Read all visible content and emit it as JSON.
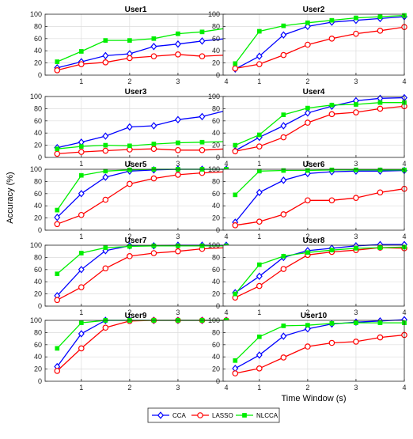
{
  "figure": {
    "ylabel": "Accuracy (%)",
    "xlabel": "Time Window (s)"
  },
  "legend": {
    "entries": [
      {
        "name": "CCA",
        "color": "#0000ff",
        "marker": "diamond"
      },
      {
        "name": "LASSO",
        "color": "#ff0000",
        "marker": "circle"
      },
      {
        "name": "NLCCA",
        "color": "#00ee00",
        "marker": "square-filled"
      }
    ]
  },
  "chart_data": [
    {
      "type": "line",
      "title": "User1",
      "x": [
        0.5,
        1,
        1.5,
        2,
        2.5,
        3,
        3.5,
        4
      ],
      "xlim": [
        0.25,
        4
      ],
      "ylim": [
        0,
        100
      ],
      "xticks": [
        1,
        2,
        3,
        4
      ],
      "yticks": [
        0,
        20,
        40,
        60,
        80,
        100
      ],
      "grid": true,
      "series": [
        {
          "name": "CCA",
          "values": [
            12,
            22,
            32,
            35,
            47,
            51,
            56,
            60
          ]
        },
        {
          "name": "LASSO",
          "values": [
            8,
            18,
            21,
            28,
            31,
            34,
            31,
            33
          ]
        },
        {
          "name": "NLCCA",
          "values": [
            22,
            39,
            57,
            57,
            60,
            68,
            71,
            77
          ]
        }
      ]
    },
    {
      "type": "line",
      "title": "User2",
      "x": [
        0.5,
        1,
        1.5,
        2,
        2.5,
        3,
        3.5,
        4
      ],
      "xlim": [
        0.25,
        4
      ],
      "ylim": [
        0,
        100
      ],
      "xticks": [
        1,
        2,
        3,
        4
      ],
      "yticks": [
        0,
        20,
        40,
        60,
        80,
        100
      ],
      "grid": true,
      "series": [
        {
          "name": "CCA",
          "values": [
            10,
            31,
            66,
            80,
            87,
            90,
            93,
            96
          ]
        },
        {
          "name": "LASSO",
          "values": [
            11,
            18,
            33,
            50,
            60,
            68,
            73,
            79
          ]
        },
        {
          "name": "NLCCA",
          "values": [
            19,
            72,
            81,
            86,
            90,
            94,
            96,
            98
          ]
        }
      ]
    },
    {
      "type": "line",
      "title": "User3",
      "x": [
        0.5,
        1,
        1.5,
        2,
        2.5,
        3,
        3.5,
        4
      ],
      "xlim": [
        0.25,
        4
      ],
      "ylim": [
        0,
        100
      ],
      "xticks": [
        1,
        2,
        3,
        4
      ],
      "yticks": [
        0,
        20,
        40,
        60,
        80,
        100
      ],
      "grid": true,
      "series": [
        {
          "name": "CCA",
          "values": [
            16,
            25,
            35,
            50,
            52,
            62,
            67,
            77
          ]
        },
        {
          "name": "LASSO",
          "values": [
            6,
            9,
            11,
            13,
            14,
            12,
            12,
            14
          ]
        },
        {
          "name": "NLCCA",
          "values": [
            14,
            18,
            20,
            19,
            22,
            24,
            25,
            26
          ]
        }
      ]
    },
    {
      "type": "line",
      "title": "User4",
      "x": [
        0.5,
        1,
        1.5,
        2,
        2.5,
        3,
        3.5,
        4
      ],
      "xlim": [
        0.25,
        4
      ],
      "ylim": [
        0,
        100
      ],
      "xticks": [
        1,
        2,
        3,
        4
      ],
      "yticks": [
        0,
        20,
        40,
        60,
        80,
        100
      ],
      "grid": true,
      "series": [
        {
          "name": "CCA",
          "values": [
            11,
            33,
            52,
            73,
            84,
            93,
            97,
            98
          ]
        },
        {
          "name": "LASSO",
          "values": [
            10,
            18,
            33,
            57,
            71,
            74,
            80,
            84
          ]
        },
        {
          "name": "NLCCA",
          "values": [
            20,
            37,
            70,
            81,
            86,
            87,
            90,
            90
          ]
        }
      ]
    },
    {
      "type": "line",
      "title": "User5",
      "x": [
        0.5,
        1,
        1.5,
        2,
        2.5,
        3,
        3.5,
        4
      ],
      "xlim": [
        0.25,
        4
      ],
      "ylim": [
        0,
        100
      ],
      "xticks": [
        1,
        2,
        3,
        4
      ],
      "yticks": [
        0,
        20,
        40,
        60,
        80,
        100
      ],
      "grid": true,
      "series": [
        {
          "name": "CCA",
          "values": [
            21,
            60,
            87,
            97,
            99,
            100,
            100,
            100
          ]
        },
        {
          "name": "LASSO",
          "values": [
            10,
            25,
            50,
            76,
            85,
            91,
            94,
            96
          ]
        },
        {
          "name": "NLCCA",
          "values": [
            33,
            90,
            97,
            99,
            100,
            100,
            100,
            100
          ]
        }
      ]
    },
    {
      "type": "line",
      "title": "User6",
      "x": [
        0.5,
        1,
        1.5,
        2,
        2.5,
        3,
        3.5,
        4
      ],
      "xlim": [
        0.25,
        4
      ],
      "ylim": [
        0,
        100
      ],
      "xticks": [
        1,
        2,
        3,
        4
      ],
      "yticks": [
        0,
        20,
        40,
        60,
        80,
        100
      ],
      "grid": true,
      "series": [
        {
          "name": "CCA",
          "values": [
            13,
            62,
            82,
            93,
            96,
            97,
            97,
            98
          ]
        },
        {
          "name": "LASSO",
          "values": [
            8,
            14,
            26,
            49,
            49,
            53,
            62,
            68
          ]
        },
        {
          "name": "NLCCA",
          "values": [
            58,
            97,
            98,
            98,
            99,
            99,
            99,
            99
          ]
        }
      ]
    },
    {
      "type": "line",
      "title": "User7",
      "x": [
        0.5,
        1,
        1.5,
        2,
        2.5,
        3,
        3.5,
        4
      ],
      "xlim": [
        0.25,
        4
      ],
      "ylim": [
        0,
        100
      ],
      "xticks": [
        1,
        2,
        3,
        4
      ],
      "yticks": [
        0,
        20,
        40,
        60,
        80,
        100
      ],
      "grid": true,
      "series": [
        {
          "name": "CCA",
          "values": [
            17,
            60,
            91,
            99,
            99,
            100,
            100,
            100
          ]
        },
        {
          "name": "LASSO",
          "values": [
            10,
            31,
            62,
            82,
            87,
            90,
            94,
            96
          ]
        },
        {
          "name": "NLCCA",
          "values": [
            53,
            87,
            96,
            98,
            99,
            99,
            99,
            99
          ]
        }
      ]
    },
    {
      "type": "line",
      "title": "User8",
      "x": [
        0.5,
        1,
        1.5,
        2,
        2.5,
        3,
        3.5,
        4
      ],
      "xlim": [
        0.25,
        4
      ],
      "ylim": [
        0,
        100
      ],
      "xticks": [
        1,
        2,
        3,
        4
      ],
      "yticks": [
        0,
        20,
        40,
        60,
        80,
        100
      ],
      "grid": true,
      "series": [
        {
          "name": "CCA",
          "values": [
            22,
            49,
            80,
            91,
            95,
            99,
            101,
            101
          ]
        },
        {
          "name": "LASSO",
          "values": [
            14,
            33,
            61,
            84,
            89,
            92,
            96,
            95
          ]
        },
        {
          "name": "NLCCA",
          "values": [
            20,
            68,
            82,
            88,
            92,
            95,
            96,
            97
          ]
        }
      ]
    },
    {
      "type": "line",
      "title": "User9",
      "x": [
        0.5,
        1,
        1.5,
        2,
        2.5,
        3,
        3.5,
        4
      ],
      "xlim": [
        0.25,
        4
      ],
      "ylim": [
        0,
        100
      ],
      "xticks": [
        1,
        2,
        3,
        4
      ],
      "yticks": [
        0,
        20,
        40,
        60,
        80,
        100
      ],
      "grid": true,
      "series": [
        {
          "name": "CCA",
          "values": [
            24,
            78,
            100,
            100,
            100,
            100,
            100,
            100
          ]
        },
        {
          "name": "LASSO",
          "values": [
            17,
            54,
            88,
            99,
            100,
            100,
            100,
            100
          ]
        },
        {
          "name": "NLCCA",
          "values": [
            54,
            96,
            100,
            100,
            100,
            100,
            100,
            100
          ]
        }
      ]
    },
    {
      "type": "line",
      "title": "User10",
      "x": [
        0.5,
        1,
        1.5,
        2,
        2.5,
        3,
        3.5,
        4
      ],
      "xlim": [
        0.25,
        4
      ],
      "ylim": [
        0,
        100
      ],
      "xticks": [
        1,
        2,
        3,
        4
      ],
      "yticks": [
        0,
        20,
        40,
        60,
        80,
        100
      ],
      "grid": true,
      "series": [
        {
          "name": "CCA",
          "values": [
            21,
            43,
            74,
            86,
            94,
            97,
            99,
            101
          ]
        },
        {
          "name": "LASSO",
          "values": [
            13,
            21,
            39,
            57,
            63,
            65,
            72,
            76
          ]
        },
        {
          "name": "NLCCA",
          "values": [
            34,
            73,
            91,
            92,
            95,
            96,
            96,
            96
          ]
        }
      ]
    }
  ]
}
